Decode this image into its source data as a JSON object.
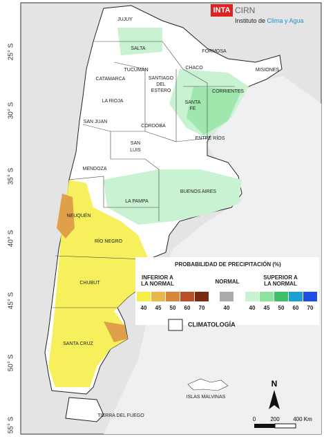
{
  "header": {
    "logo": "INTA",
    "org": "CIRN",
    "subtitle_prefix": "Instituto de ",
    "subtitle_highlight": "Clima y Agua"
  },
  "latitude_labels": [
    "25° S",
    "30° S",
    "35° S",
    "40° S",
    "45° S",
    "50° S",
    "55° S"
  ],
  "provinces": [
    "JUJUY",
    "SALTA",
    "FORMOSA",
    "TUCUMÁN",
    "CHACO",
    "MISIONES",
    "CATAMARCA",
    "SANTIAGO",
    "DEL",
    "ESTERO",
    "CORRIENTES",
    "LA RIOJA",
    "SANTA",
    "FE",
    "SAN JUAN",
    "CÓRDOBA",
    "ENTRE RÍOS",
    "SAN",
    "LUIS",
    "MENDOZA",
    "BUENOS AIRES",
    "LA PAMPA",
    "NEUQUÉN",
    "RÍO NEGRO",
    "CHUBUT",
    "SANTA CRUZ",
    "TIERRA DEL FUEGO",
    "ISLAS MALVINAS"
  ],
  "legend": {
    "title": "PROBABILIDAD DE PRECIPITACIÓN (%)",
    "below": {
      "lines": [
        "INFERIOR A",
        "LA NORMAL"
      ],
      "steps": [
        {
          "value": 40,
          "color": "#f5ee4a"
        },
        {
          "value": 45,
          "color": "#e8b84a"
        },
        {
          "value": 50,
          "color": "#d9853a"
        },
        {
          "value": 60,
          "color": "#b8502a"
        },
        {
          "value": 70,
          "color": "#7a2a10"
        }
      ]
    },
    "normal": {
      "label": "NORMAL",
      "steps": [
        {
          "value": 40,
          "color": "#aaaaaa"
        }
      ]
    },
    "above": {
      "lines": [
        "SUPERIOR A",
        "LA NORMAL"
      ],
      "steps": [
        {
          "value": 40,
          "color": "#c8f2d2"
        },
        {
          "value": 45,
          "color": "#8ee39c"
        },
        {
          "value": 50,
          "color": "#3fbf6a"
        },
        {
          "value": 60,
          "color": "#1f9fd0"
        },
        {
          "value": 70,
          "color": "#1f4fe0"
        }
      ]
    },
    "climatology": "CLIMATOLOGÍA"
  },
  "north": "N",
  "scale": [
    "0",
    "200",
    "400 Km"
  ]
}
